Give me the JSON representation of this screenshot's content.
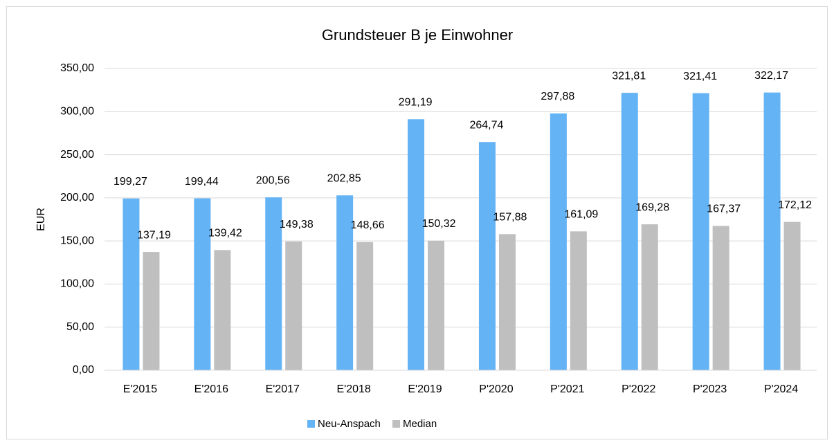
{
  "chart_data": {
    "type": "bar",
    "title": "Grundsteuer B je Einwohner",
    "y_label": "EUR",
    "categories": [
      "E'2015",
      "E'2016",
      "E'2017",
      "E'2018",
      "E'2019",
      "P'2020",
      "P'2021",
      "P'2022",
      "P'2023",
      "P'2024"
    ],
    "series": [
      {
        "name": "Neu-Anspach",
        "color": "#63b3f5",
        "values": [
          199.27,
          199.44,
          200.56,
          202.85,
          291.19,
          264.74,
          297.88,
          321.81,
          321.41,
          322.17
        ],
        "value_labels": [
          "199,27",
          "199,44",
          "200,56",
          "202,85",
          "291,19",
          "264,74",
          "297,88",
          "321,81",
          "321,41",
          "322,17"
        ]
      },
      {
        "name": "Median",
        "color": "#bfbfbf",
        "values": [
          137.19,
          139.42,
          149.38,
          148.66,
          150.32,
          157.88,
          161.09,
          169.28,
          167.37,
          172.12
        ],
        "value_labels": [
          "137,19",
          "139,42",
          "149,38",
          "148,66",
          "150,32",
          "157,88",
          "161,09",
          "169,28",
          "167,37",
          "172,12"
        ]
      }
    ],
    "ylim": [
      0,
      350
    ],
    "yticks": [
      {
        "value": 0,
        "label": "0,00"
      },
      {
        "value": 50,
        "label": "50,00"
      },
      {
        "value": 100,
        "label": "100,00"
      },
      {
        "value": 150,
        "label": "150,00"
      },
      {
        "value": 200,
        "label": "200,00"
      },
      {
        "value": 250,
        "label": "250,00"
      },
      {
        "value": 300,
        "label": "300,00"
      },
      {
        "value": 350,
        "label": "350,00"
      }
    ],
    "grid": true,
    "legend": "bottom"
  }
}
